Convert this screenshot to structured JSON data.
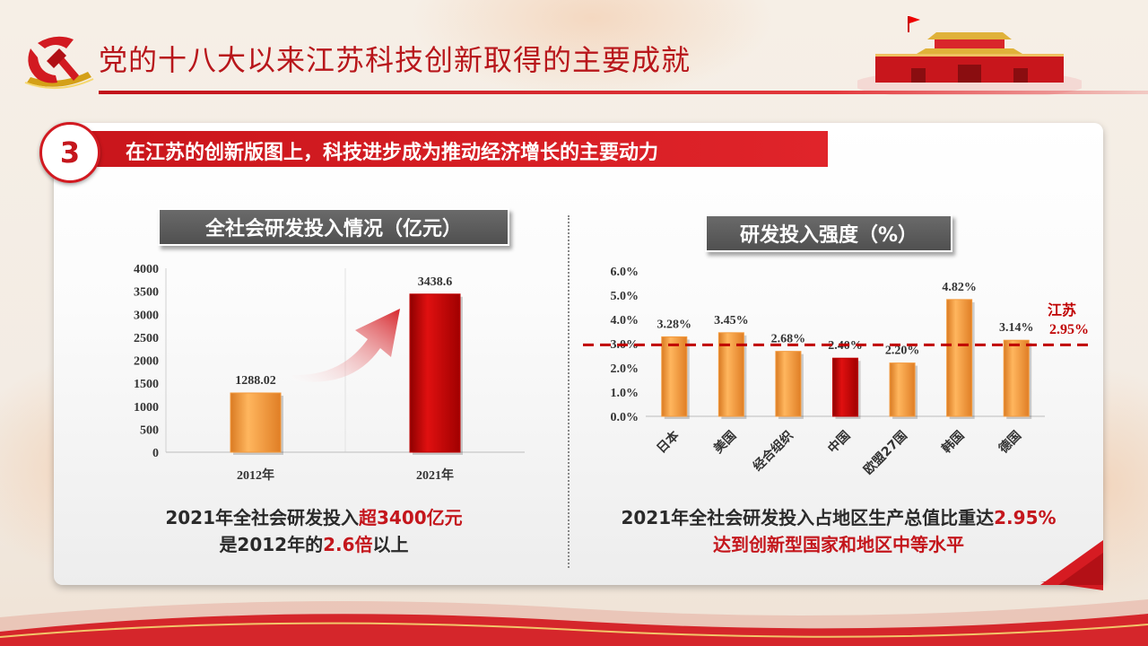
{
  "header": {
    "title": "党的十八大以来江苏科技创新取得的主要成就"
  },
  "section": {
    "number": "3",
    "title": "在江苏的创新版图上，科技进步成为推动经济增长的主要动力"
  },
  "colors": {
    "primary_red": "#c4161c",
    "bar_orange": "#f39a3d",
    "bar_red": "#c00000",
    "title_gray": "#5a5a5a"
  },
  "left_chart": {
    "title": "全社会研发投入情况（亿元）",
    "caption": {
      "line1_a": "2021年全社会研发投入",
      "line1_b": "超3400亿元",
      "line2_a": "是2012年的",
      "line2_b": "2.6倍",
      "line2_c": "以上"
    }
  },
  "right_chart": {
    "title": "研发投入强度（%）",
    "reference_label": "江苏",
    "reference_value_label": "2.95%",
    "caption": {
      "line1_a": "2021年全社会研发投入占地区生产总值比重达",
      "line1_b": "2.95%",
      "line2": "达到创新型国家和地区中等水平"
    }
  },
  "chart_data": [
    {
      "type": "bar",
      "title": "全社会研发投入情况（亿元）",
      "categories": [
        "2012年",
        "2021年"
      ],
      "values": [
        1288.02,
        3438.6
      ],
      "value_labels": [
        "1288.02",
        "3438.6"
      ],
      "ylim": [
        0,
        4000
      ],
      "yticks": [
        0,
        500,
        1000,
        1500,
        2000,
        2500,
        3000,
        3500,
        4000
      ],
      "ytick_labels": [
        "0",
        "500",
        "1000",
        "1500",
        "2000",
        "2500",
        "3000",
        "3500",
        "4000"
      ],
      "bar_colors": [
        "#f39a3d",
        "#c00000"
      ],
      "grid": true
    },
    {
      "type": "bar",
      "title": "研发投入强度（%）",
      "categories": [
        "日本",
        "美国",
        "经合组织",
        "中国",
        "欧盟27国",
        "韩国",
        "德国"
      ],
      "values": [
        3.28,
        3.45,
        2.68,
        2.4,
        2.2,
        4.82,
        3.14
      ],
      "value_labels": [
        "3.28%",
        "3.45%",
        "2.68%",
        "2.40%",
        "2.20%",
        "4.82%",
        "3.14%"
      ],
      "ylim": [
        0,
        6
      ],
      "yticks": [
        0,
        1,
        2,
        3,
        4,
        5,
        6
      ],
      "ytick_labels": [
        "0.0%",
        "1.0%",
        "2.0%",
        "3.0%",
        "4.0%",
        "5.0%",
        "6.0%"
      ],
      "bar_colors": [
        "#f39a3d",
        "#f39a3d",
        "#f39a3d",
        "#c00000",
        "#f39a3d",
        "#f39a3d",
        "#f39a3d"
      ],
      "reference_line": {
        "value": 2.95,
        "label": "江苏 2.95%",
        "style": "dashed",
        "color": "#c00000"
      }
    }
  ]
}
